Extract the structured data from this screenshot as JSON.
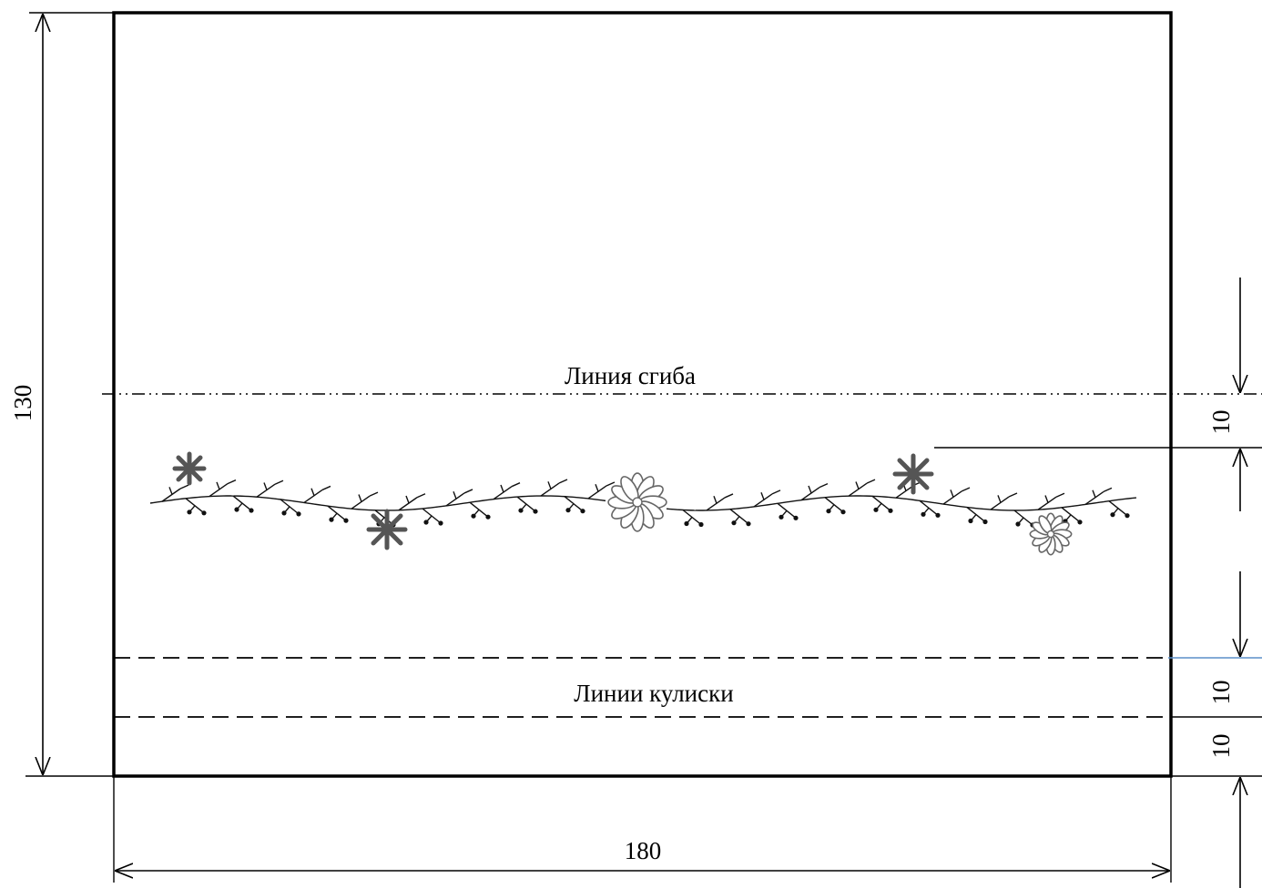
{
  "drawing": {
    "fold_line_label": "Линия сгиба",
    "drawstring_lines_label": "Линии кулиски"
  },
  "dimensions": {
    "width": "180",
    "height": "130",
    "fold_offset": "10",
    "drawstring_gap": "10",
    "bottom_gap": "10"
  },
  "colors": {
    "outline": "#000000",
    "motif": "#555555",
    "accent_line": "#5b8fc9"
  }
}
